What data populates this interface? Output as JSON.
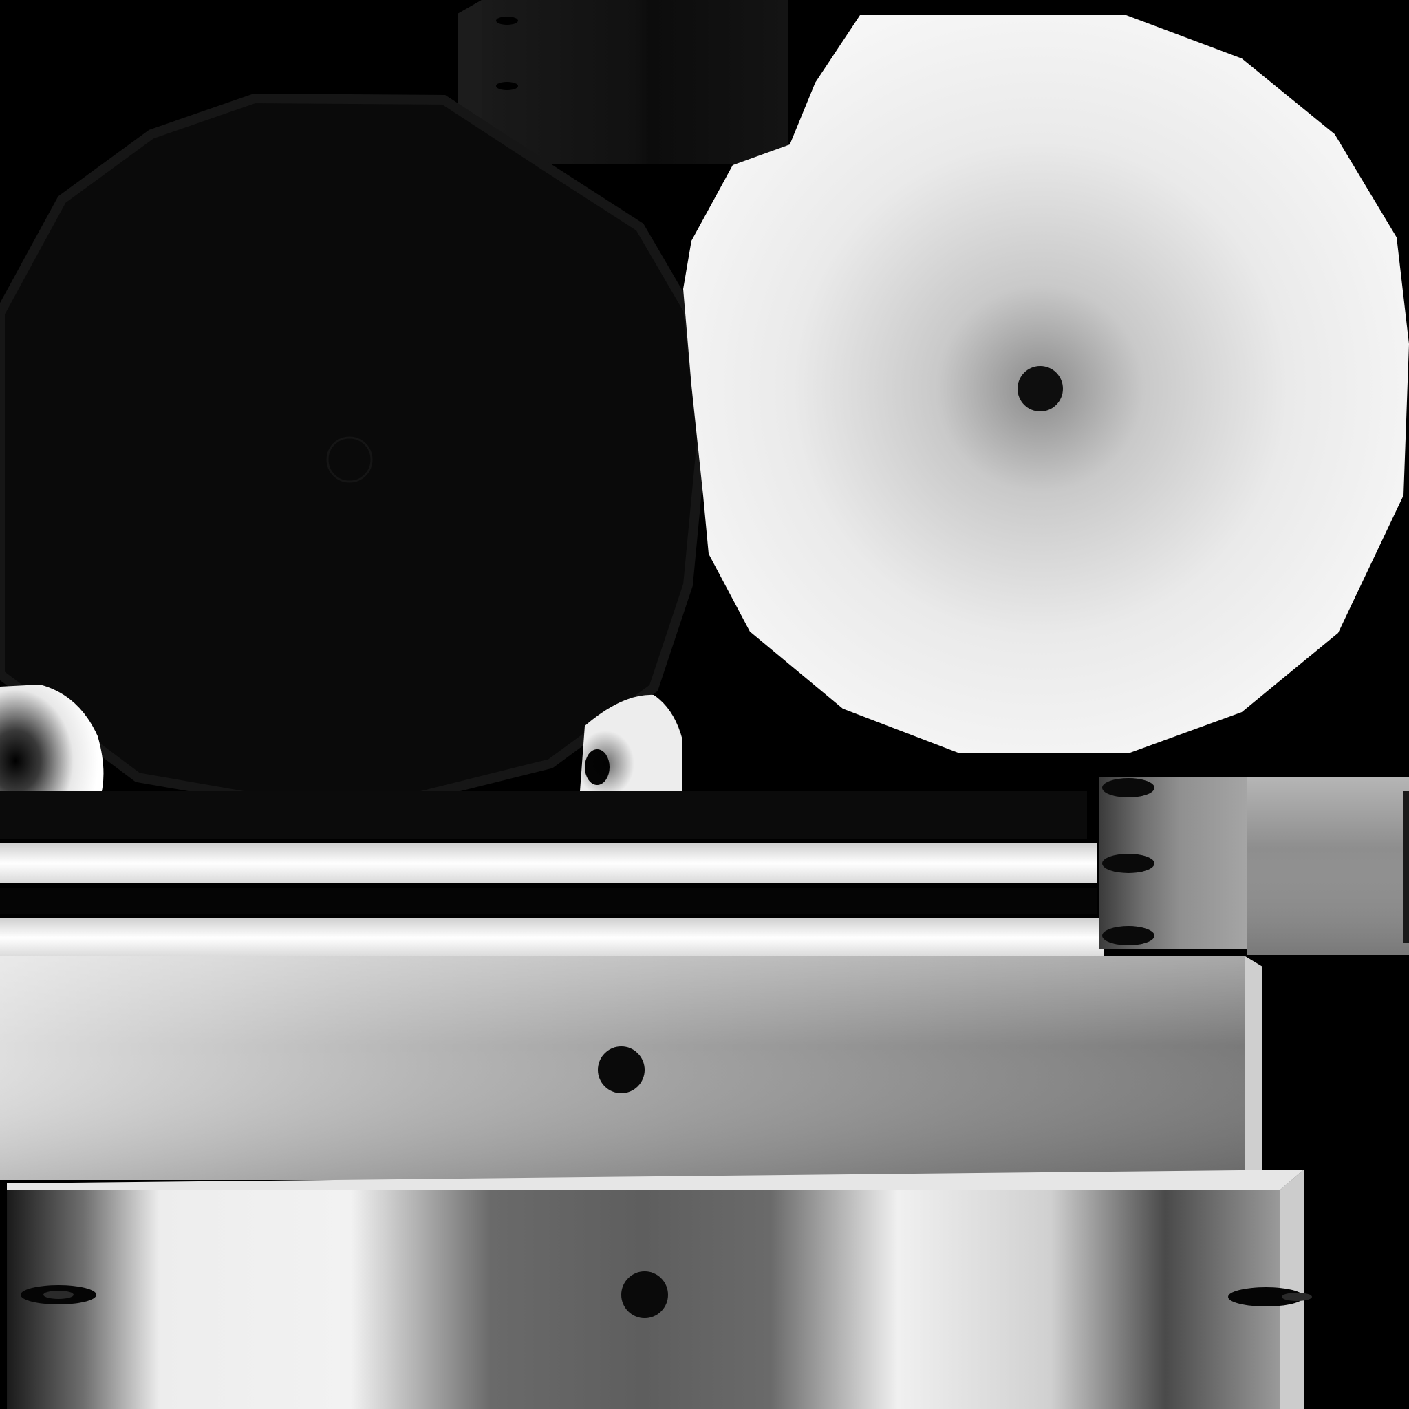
{
  "texture_atlas": {
    "background_color": "#000000",
    "dark_tone": "#0a0a0a",
    "light_tone": "#f4f4f4",
    "hole_color": "#111111",
    "islands": [
      "wheel-face-dark",
      "wheel-face-light",
      "top-bracket",
      "left-cap",
      "center-cap",
      "rail-strips",
      "side-block",
      "bar-upper",
      "bar-lower"
    ]
  }
}
